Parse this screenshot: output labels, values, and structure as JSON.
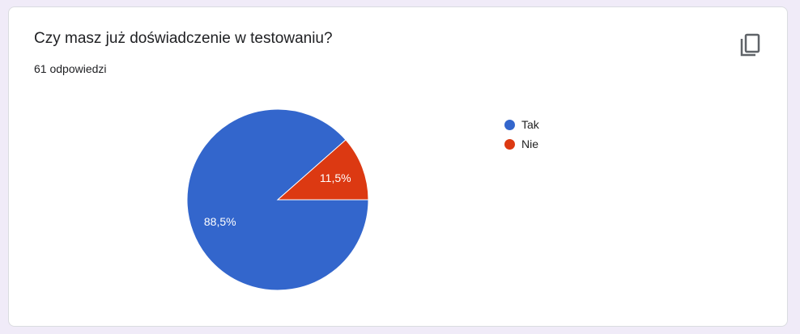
{
  "question": {
    "title": "Czy masz już doświadczenie w testowaniu?",
    "responses": "61 odpowiedzi",
    "copy_icon": "copy-icon"
  },
  "chart_data": {
    "type": "pie",
    "categories": [
      "Tak",
      "Nie"
    ],
    "values": [
      88.5,
      11.5
    ],
    "labels": [
      "88,5%",
      "11,5%"
    ],
    "colors": [
      "#3366cc",
      "#dc3912"
    ],
    "legend": "right"
  }
}
